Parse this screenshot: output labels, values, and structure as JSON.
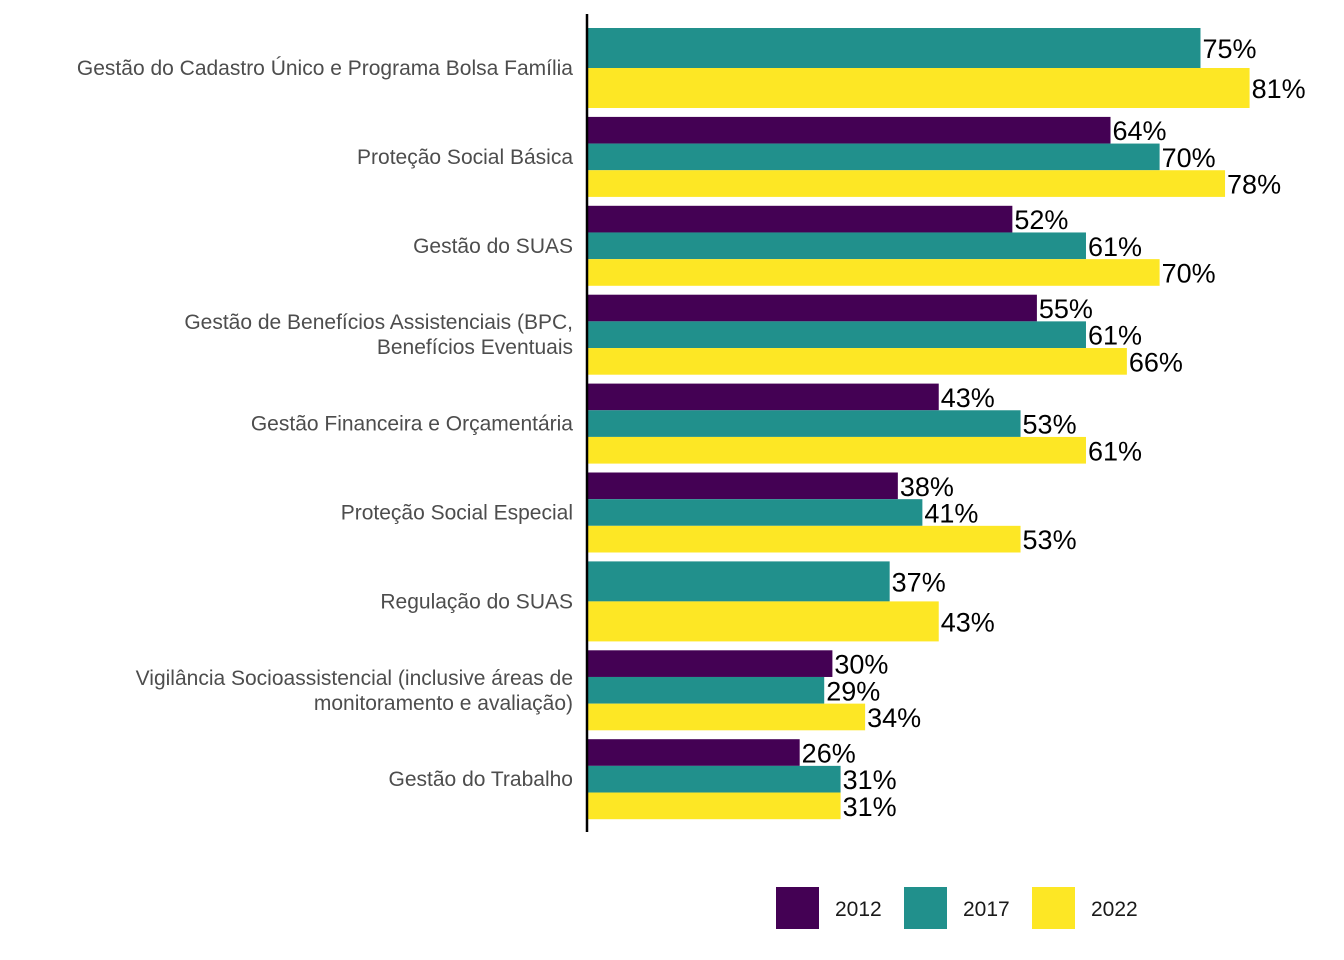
{
  "chart_data": {
    "type": "bar",
    "orientation": "horizontal",
    "categories": [
      [
        "Gestão do Cadastro Único e Programa Bolsa Família"
      ],
      [
        "Proteção Social Básica"
      ],
      [
        "Gestão do SUAS"
      ],
      [
        "Gestão de Benefícios Assistenciais (BPC,",
        "Benefícios Eventuais"
      ],
      [
        "Gestão Financeira e Orçamentária"
      ],
      [
        "Proteção Social Especial"
      ],
      [
        "Regulação do SUAS"
      ],
      [
        "Vigilância Socioassistencial (inclusive áreas de",
        "monitoramento e avaliação)"
      ],
      [
        "Gestão do Trabalho"
      ]
    ],
    "series": [
      {
        "name": "2012",
        "color": "#440154",
        "values": [
          null,
          64,
          52,
          55,
          43,
          38,
          null,
          30,
          26
        ]
      },
      {
        "name": "2017",
        "color": "#21908C",
        "values": [
          75,
          70,
          61,
          61,
          53,
          41,
          37,
          29,
          31
        ]
      },
      {
        "name": "2022",
        "color": "#FDE725",
        "values": [
          81,
          78,
          70,
          66,
          61,
          53,
          43,
          34,
          31
        ]
      }
    ],
    "data_labels": [
      [
        null,
        "64%",
        "52%",
        "55%",
        "43%",
        "38%",
        null,
        "30%",
        "26%"
      ],
      [
        "75%",
        "70%",
        "61%",
        "61%",
        "53%",
        "41%",
        "37%",
        "29%",
        "31%"
      ],
      [
        "81%",
        "78%",
        "70%",
        "66%",
        "61%",
        "53%",
        "43%",
        "34%",
        "31%"
      ]
    ],
    "xlim": [
      0,
      100
    ],
    "grid": false,
    "legend_position": "bottom"
  }
}
